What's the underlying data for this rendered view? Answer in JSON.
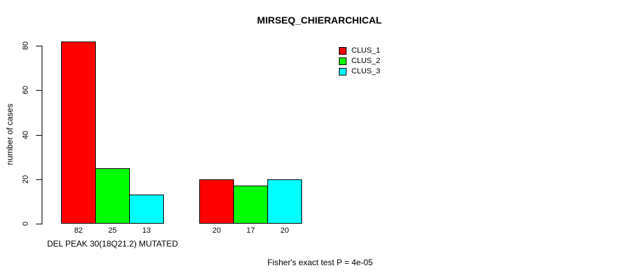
{
  "chart_data": {
    "type": "bar",
    "title": "MIRSEQ_CHIERARCHICAL",
    "ylabel": "number of cases",
    "xlabel": "DEL PEAK 30(18Q21.2) MUTATED",
    "yticks": [
      0,
      20,
      40,
      60,
      80
    ],
    "ylim": [
      0,
      80
    ],
    "grid": false,
    "legend_position": "top-right",
    "bar_value_labels": true,
    "series": [
      {
        "name": "CLUS_1",
        "color": "#FF0000"
      },
      {
        "name": "CLUS_2",
        "color": "#00FF00"
      },
      {
        "name": "CLUS_3",
        "color": "#00FFFF"
      }
    ],
    "groups": [
      {
        "label": "DEL PEAK 30(18Q21.2) MUTATED",
        "values": [
          82,
          25,
          13
        ]
      },
      {
        "label": "",
        "values": [
          20,
          17,
          20
        ]
      }
    ],
    "annotation": "Fisher's exact test P = 4e-05"
  }
}
